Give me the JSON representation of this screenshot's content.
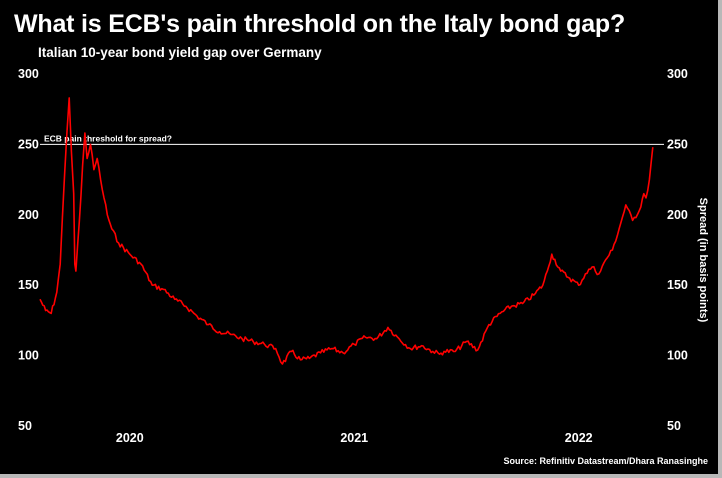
{
  "title": "What is ECB's pain threshold on the Italy bond gap?",
  "subtitle": "Italian 10-year bond yield gap over Germany",
  "source": "Source: Refinitiv Datastream/Dhara Ranasinghe",
  "colors": {
    "background": "#000000",
    "line": "#ff0000",
    "threshold": "#ffffff",
    "text": "#ffffff"
  },
  "chart_data": {
    "type": "line",
    "title": "What is ECB's pain threshold on the Italy bond gap?",
    "subtitle": "Italian 10-year bond yield gap over Germany",
    "xlabel": "",
    "ylabel": "Spread (in basis points)",
    "ylim": [
      50,
      300
    ],
    "yticks": [
      50,
      100,
      150,
      200,
      250,
      300
    ],
    "xlim": [
      2019.6,
      2022.38
    ],
    "xticks": [
      {
        "value": 2020.0,
        "label": "2020"
      },
      {
        "value": 2021.0,
        "label": "2021"
      },
      {
        "value": 2022.0,
        "label": "2022"
      }
    ],
    "grid": false,
    "threshold": {
      "value": 250,
      "label": "ECB pain threshold for spread?"
    },
    "x": [
      2019.6,
      2019.625,
      2019.65,
      2019.675,
      2019.69,
      2019.7,
      2019.71,
      2019.72,
      2019.73,
      2019.74,
      2019.75,
      2019.755,
      2019.76,
      2019.775,
      2019.79,
      2019.8,
      2019.81,
      2019.825,
      2019.84,
      2019.855,
      2019.87,
      2019.885,
      2019.9,
      2019.92,
      2019.95,
      2020.0,
      2020.05,
      2020.1,
      2020.15,
      2020.2,
      2020.25,
      2020.3,
      2020.35,
      2020.4,
      2020.45,
      2020.5,
      2020.55,
      2020.6,
      2020.65,
      2020.68,
      2020.72,
      2020.76,
      2020.8,
      2020.85,
      2020.9,
      2020.95,
      2021.0,
      2021.05,
      2021.1,
      2021.15,
      2021.2,
      2021.25,
      2021.3,
      2021.35,
      2021.38,
      2021.4,
      2021.45,
      2021.5,
      2021.55,
      2021.6,
      2021.65,
      2021.7,
      2021.75,
      2021.8,
      2021.84,
      2021.86,
      2021.88,
      2021.92,
      2021.96,
      2022.0,
      2022.03,
      2022.06,
      2022.09,
      2022.12,
      2022.15,
      2022.18,
      2022.21,
      2022.24,
      2022.27,
      2022.29,
      2022.3,
      2022.315,
      2022.33
    ],
    "values": [
      140,
      132,
      130,
      145,
      165,
      198,
      230,
      258,
      283,
      245,
      215,
      165,
      160,
      195,
      235,
      258,
      240,
      250,
      232,
      240,
      225,
      212,
      200,
      190,
      180,
      172,
      165,
      150,
      147,
      140,
      135,
      128,
      122,
      117,
      115,
      112,
      110,
      108,
      105,
      94,
      103,
      97,
      98,
      102,
      105,
      102,
      108,
      113,
      112,
      120,
      112,
      105,
      107,
      103,
      101,
      103,
      103,
      110,
      104,
      122,
      130,
      135,
      137,
      143,
      150,
      160,
      172,
      160,
      155,
      150,
      158,
      163,
      158,
      168,
      175,
      190,
      207,
      196,
      203,
      215,
      212,
      225,
      248
    ]
  }
}
